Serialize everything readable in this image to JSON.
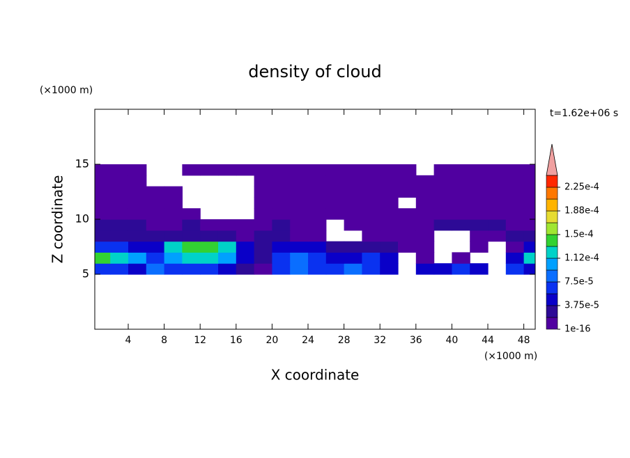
{
  "chart_data": {
    "type": "contour",
    "title": "density of cloud",
    "x_label": "X coordinate",
    "y_label": "Z coordinate",
    "x_unit": "(×1000 m)",
    "y_unit": "(×1000 m)",
    "time_label": "t=1.62e+06 s",
    "xlim": [
      0.28,
      49.27
    ],
    "ylim": [
      0,
      20
    ],
    "xticks": [
      4,
      8,
      12,
      16,
      20,
      24,
      28,
      32,
      36,
      40,
      44,
      48
    ],
    "yticks": [
      5,
      10,
      15
    ],
    "x": [
      1,
      3,
      5,
      7,
      9,
      11,
      13,
      15,
      17,
      19,
      21,
      23,
      25,
      27,
      29,
      31,
      33,
      35,
      37,
      39,
      41,
      43,
      45,
      47,
      49
    ],
    "z": [
      5.5,
      6.5,
      7.5,
      8.5,
      9.5,
      10.5,
      11.5,
      12.5,
      13.5,
      14.5
    ],
    "values": [
      [
        6.5e-05,
        6.5e-05,
        4.5e-05,
        8.5e-05,
        6.5e-05,
        6.5e-05,
        6.5e-05,
        4.5e-05,
        2.5e-05,
        5e-06,
        6.5e-05,
        8.5e-05,
        6.5e-05,
        6.5e-05,
        8.5e-05,
        6.5e-05,
        4.5e-05,
        null,
        4.5e-05,
        4.5e-05,
        6.5e-05,
        4.5e-05,
        null,
        6.5e-05,
        4.5e-05
      ],
      [
        0.00014,
        0.00012,
        0.0001,
        6.5e-05,
        0.0001,
        0.00012,
        0.00012,
        0.0001,
        4.5e-05,
        2.5e-05,
        6.5e-05,
        8.5e-05,
        6.5e-05,
        4.5e-05,
        4.5e-05,
        6.5e-05,
        4.5e-05,
        null,
        5e-06,
        null,
        5e-06,
        null,
        null,
        4.5e-05,
        0.00012
      ],
      [
        6.5e-05,
        6.5e-05,
        4.5e-05,
        4.5e-05,
        0.00012,
        0.00014,
        0.00014,
        0.00012,
        4.5e-05,
        2.5e-05,
        4.5e-05,
        4.5e-05,
        4.5e-05,
        2.5e-05,
        2.5e-05,
        2.5e-05,
        2.5e-05,
        5e-06,
        5e-06,
        null,
        null,
        5e-06,
        null,
        5e-06,
        4.5e-05
      ],
      [
        2.5e-05,
        2.5e-05,
        2.5e-05,
        2.5e-05,
        2.5e-05,
        2.5e-05,
        2.5e-05,
        2.5e-05,
        5e-06,
        2.5e-05,
        2.5e-05,
        5e-06,
        5e-06,
        null,
        null,
        5e-06,
        5e-06,
        5e-06,
        5e-06,
        null,
        null,
        5e-06,
        5e-06,
        2.5e-05,
        2.5e-05
      ],
      [
        2.5e-05,
        2.5e-05,
        2.5e-05,
        5e-06,
        5e-06,
        2.5e-05,
        5e-06,
        5e-06,
        5e-06,
        5e-06,
        2.5e-05,
        5e-06,
        5e-06,
        null,
        5e-06,
        5e-06,
        5e-06,
        5e-06,
        5e-06,
        2.5e-05,
        2.5e-05,
        2.5e-05,
        2.5e-05,
        5e-06,
        5e-06
      ],
      [
        5e-06,
        5e-06,
        5e-06,
        5e-06,
        5e-06,
        5e-06,
        null,
        null,
        null,
        5e-06,
        5e-06,
        5e-06,
        5e-06,
        5e-06,
        5e-06,
        5e-06,
        5e-06,
        5e-06,
        5e-06,
        5e-06,
        5e-06,
        5e-06,
        5e-06,
        5e-06,
        5e-06
      ],
      [
        5e-06,
        5e-06,
        5e-06,
        5e-06,
        5e-06,
        null,
        null,
        null,
        null,
        5e-06,
        5e-06,
        5e-06,
        5e-06,
        5e-06,
        5e-06,
        5e-06,
        5e-06,
        null,
        5e-06,
        5e-06,
        5e-06,
        5e-06,
        5e-06,
        5e-06,
        5e-06
      ],
      [
        5e-06,
        5e-06,
        5e-06,
        5e-06,
        5e-06,
        null,
        null,
        null,
        null,
        5e-06,
        5e-06,
        5e-06,
        5e-06,
        5e-06,
        5e-06,
        5e-06,
        5e-06,
        5e-06,
        5e-06,
        5e-06,
        5e-06,
        5e-06,
        5e-06,
        5e-06,
        5e-06
      ],
      [
        5e-06,
        5e-06,
        5e-06,
        null,
        null,
        null,
        null,
        null,
        null,
        5e-06,
        5e-06,
        5e-06,
        5e-06,
        5e-06,
        5e-06,
        5e-06,
        5e-06,
        5e-06,
        5e-06,
        5e-06,
        5e-06,
        5e-06,
        5e-06,
        5e-06,
        5e-06
      ],
      [
        5e-06,
        5e-06,
        5e-06,
        null,
        null,
        5e-06,
        5e-06,
        5e-06,
        5e-06,
        5e-06,
        5e-06,
        5e-06,
        5e-06,
        5e-06,
        5e-06,
        5e-06,
        5e-06,
        5e-06,
        null,
        5e-06,
        5e-06,
        5e-06,
        5e-06,
        5e-06,
        5e-06
      ]
    ],
    "colorbar": {
      "levels": [
        1e-16,
        1.875e-05,
        3.75e-05,
        5.625e-05,
        7.5e-05,
        9.375e-05,
        0.0001125,
        0.00013125,
        0.00015,
        0.00016875,
        0.0001875,
        0.00020625,
        0.000225,
        0.00024375
      ],
      "colors": [
        "#5000a0",
        "#2d0a96",
        "#0a00c8",
        "#0a32f0",
        "#0a6eff",
        "#00a0ff",
        "#00d2c8",
        "#32d232",
        "#a0e632",
        "#e6dc32",
        "#ffb400",
        "#ff7800",
        "#ff2800"
      ],
      "extend_color": "#f0a0a0",
      "ticks": [
        {
          "value": 1e-16,
          "label": "1e-16"
        },
        {
          "value": 3.75e-05,
          "label": "3.75e-5"
        },
        {
          "value": 7.5e-05,
          "label": "7.5e-5"
        },
        {
          "value": 0.0001125,
          "label": "1.12e-4"
        },
        {
          "value": 0.00015,
          "label": "1.5e-4"
        },
        {
          "value": 0.0001875,
          "label": "1.88e-4"
        },
        {
          "value": 0.000225,
          "label": "2.25e-4"
        }
      ]
    }
  }
}
